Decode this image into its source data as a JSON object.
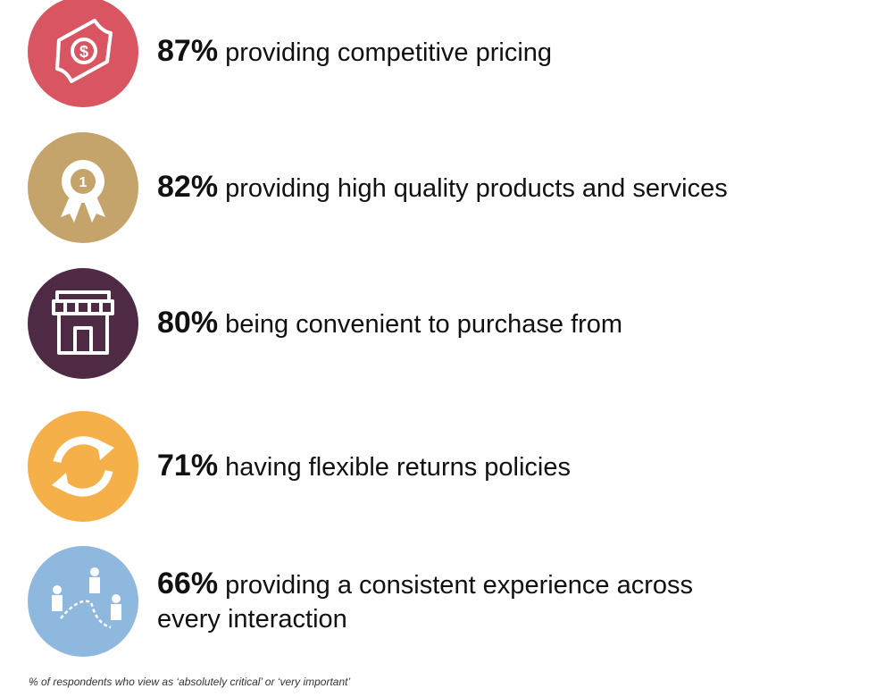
{
  "items": [
    {
      "percent": "87%",
      "label": "providing competitive pricing"
    },
    {
      "percent": "82%",
      "label": "providing high quality products and services"
    },
    {
      "percent": "80%",
      "label": "being convenient to purchase from"
    },
    {
      "percent": "71%",
      "label": "having flexible returns policies"
    },
    {
      "percent": "66%",
      "label": "providing a consistent experience across every interaction"
    }
  ],
  "footnote": "% of respondents who view as ‘absolutely critical’ or ‘very important’"
}
